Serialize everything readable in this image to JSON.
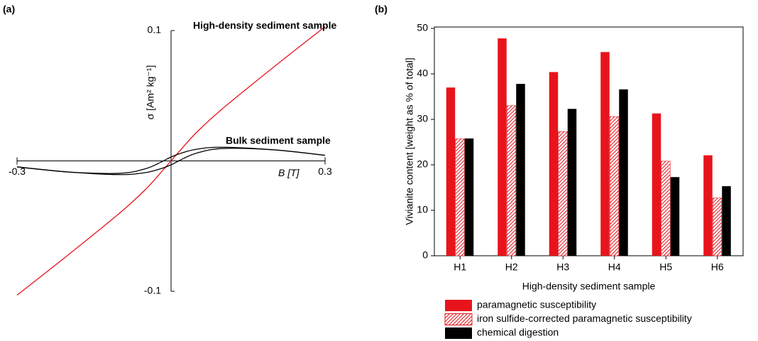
{
  "chart_data": [
    {
      "type": "line",
      "panel": "(a)",
      "xlabel": "B [T]",
      "ylabel": "σ [Am² kg⁻¹]",
      "xlim": [
        -0.3,
        0.3
      ],
      "ylim": [
        -0.1,
        0.1
      ],
      "xticks": [
        -0.3,
        0.3
      ],
      "yticks": [
        -0.1,
        0.1
      ],
      "x": [
        -0.3,
        -0.2,
        -0.1,
        -0.05,
        -0.02,
        0,
        0.02,
        0.05,
        0.1,
        0.2,
        0.3
      ],
      "series": [
        {
          "name": "High-density sediment sample",
          "color": "#e8141c",
          "values": [
            -0.103,
            -0.072,
            -0.04,
            -0.022,
            -0.009,
            0,
            0.009,
            0.022,
            0.04,
            0.072,
            0.103
          ]
        },
        {
          "name": "Bulk sediment sample",
          "color": "#000000",
          "values": [
            -0.0046,
            -0.0085,
            -0.0095,
            -0.006,
            -0.001,
            0.003,
            0.006,
            0.009,
            0.0105,
            0.0085,
            0.0043
          ],
          "lower": [
            -0.0046,
            -0.0085,
            -0.0105,
            -0.009,
            -0.006,
            -0.003,
            0.001,
            0.006,
            0.0095,
            0.0085,
            0.0043
          ]
        }
      ]
    },
    {
      "type": "bar",
      "panel": "(b)",
      "xlabel": "High-density sediment sample",
      "ylabel": "Vivianite content [weight as % of total]",
      "categories": [
        "H1",
        "H2",
        "H3",
        "H4",
        "H5",
        "H6"
      ],
      "ylim": [
        0,
        50
      ],
      "yticks": [
        0,
        10,
        20,
        30,
        40,
        50
      ],
      "series": [
        {
          "name": "paramagnetic susceptibility",
          "color": "#e8141c",
          "values": [
            37.0,
            47.8,
            40.4,
            44.8,
            31.3,
            22.1
          ]
        },
        {
          "name": "iron sulfide-corrected paramagnetic susceptibility",
          "color": "#e8141c",
          "hatch": true,
          "values": [
            25.7,
            33.0,
            27.3,
            30.6,
            20.8,
            12.7
          ]
        },
        {
          "name": "chemical digestion",
          "color": "#000000",
          "values": [
            25.8,
            37.8,
            32.3,
            36.6,
            17.3,
            15.3
          ]
        }
      ]
    }
  ]
}
